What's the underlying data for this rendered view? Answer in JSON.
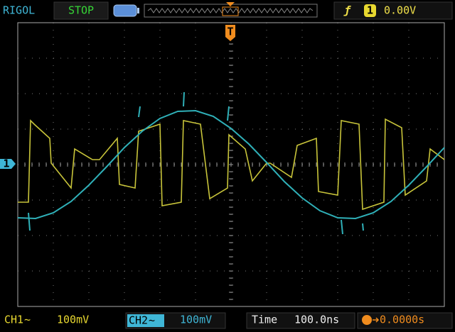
{
  "header": {
    "brand": "RIGOL",
    "status": "STOP",
    "trigger_source": "1",
    "trigger_level": "0.00V"
  },
  "markers": {
    "trigger_position": "T",
    "channel_marker": "1"
  },
  "footer": {
    "ch1": {
      "label": "CH1",
      "coupling": "~",
      "scale": "100mV"
    },
    "ch2": {
      "label": "CH2",
      "coupling": "~",
      "scale": "100mV"
    },
    "time": {
      "label": "Time",
      "scale": "100.0ns"
    },
    "trigger_offset": "0.0000s"
  }
}
